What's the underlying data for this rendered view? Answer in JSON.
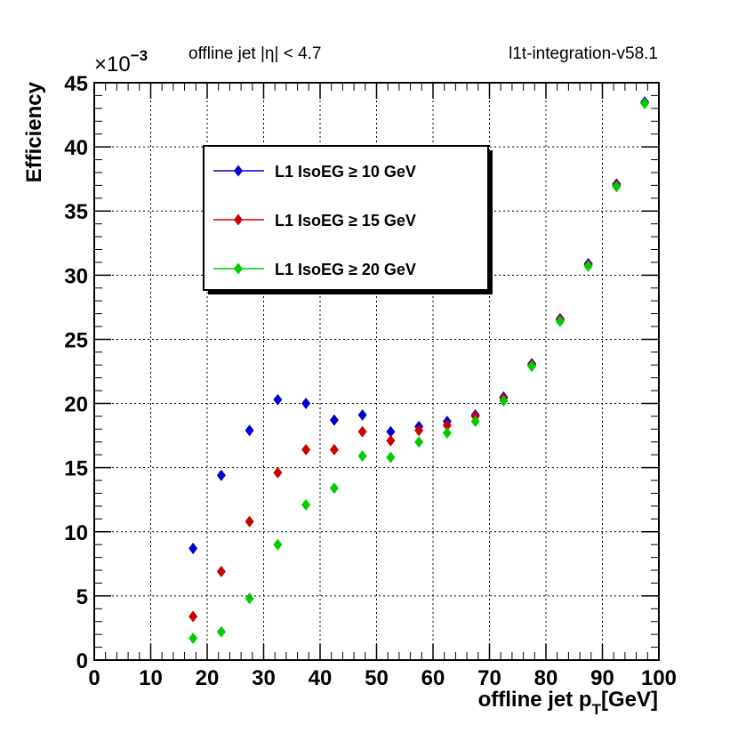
{
  "chart_data": {
    "type": "scatter",
    "title_left": "offline jet |η| < 4.7",
    "title_right": "l1t-integration-v58.1",
    "xlabel_main": "offline jet p",
    "xlabel_sub": "T",
    "xlabel_unit": "[GeV]",
    "ylabel": "Efficiency",
    "multiplier": "×10",
    "multiplier_exp": "−3",
    "xlim": [
      0,
      100
    ],
    "ylim": [
      0,
      45
    ],
    "xticks": [
      0,
      10,
      20,
      30,
      40,
      50,
      60,
      70,
      80,
      90,
      100
    ],
    "yticks": [
      0,
      5,
      10,
      15,
      20,
      25,
      30,
      35,
      40,
      45
    ],
    "grid": true,
    "legend_position": "top-left",
    "x": [
      17.5,
      22.5,
      27.5,
      32.5,
      37.5,
      42.5,
      47.5,
      52.5,
      57.5,
      62.5,
      67.5,
      72.5,
      77.5,
      82.5,
      87.5,
      92.5,
      97.5
    ],
    "series": [
      {
        "name": "L1 IsoEG ≥ 10 GeV",
        "color": "#0000cc",
        "values": [
          8.7,
          14.4,
          17.9,
          20.3,
          20.0,
          18.7,
          19.1,
          17.8,
          18.2,
          18.6,
          19.1,
          20.5,
          23.1,
          26.6,
          30.9,
          37.1,
          43.5
        ]
      },
      {
        "name": "L1 IsoEG ≥ 15 GeV",
        "color": "#cc0000",
        "values": [
          3.4,
          6.9,
          10.8,
          14.6,
          16.4,
          16.4,
          17.8,
          17.1,
          17.9,
          18.3,
          19.0,
          20.4,
          23.0,
          26.5,
          30.8,
          37.0,
          43.4
        ]
      },
      {
        "name": "L1 IsoEG ≥ 20 GeV",
        "color": "#00cc00",
        "values": [
          1.7,
          2.2,
          4.8,
          9.0,
          12.1,
          13.4,
          15.9,
          15.8,
          17.0,
          17.7,
          18.6,
          20.2,
          22.9,
          26.4,
          30.7,
          36.9,
          43.4
        ]
      }
    ]
  }
}
